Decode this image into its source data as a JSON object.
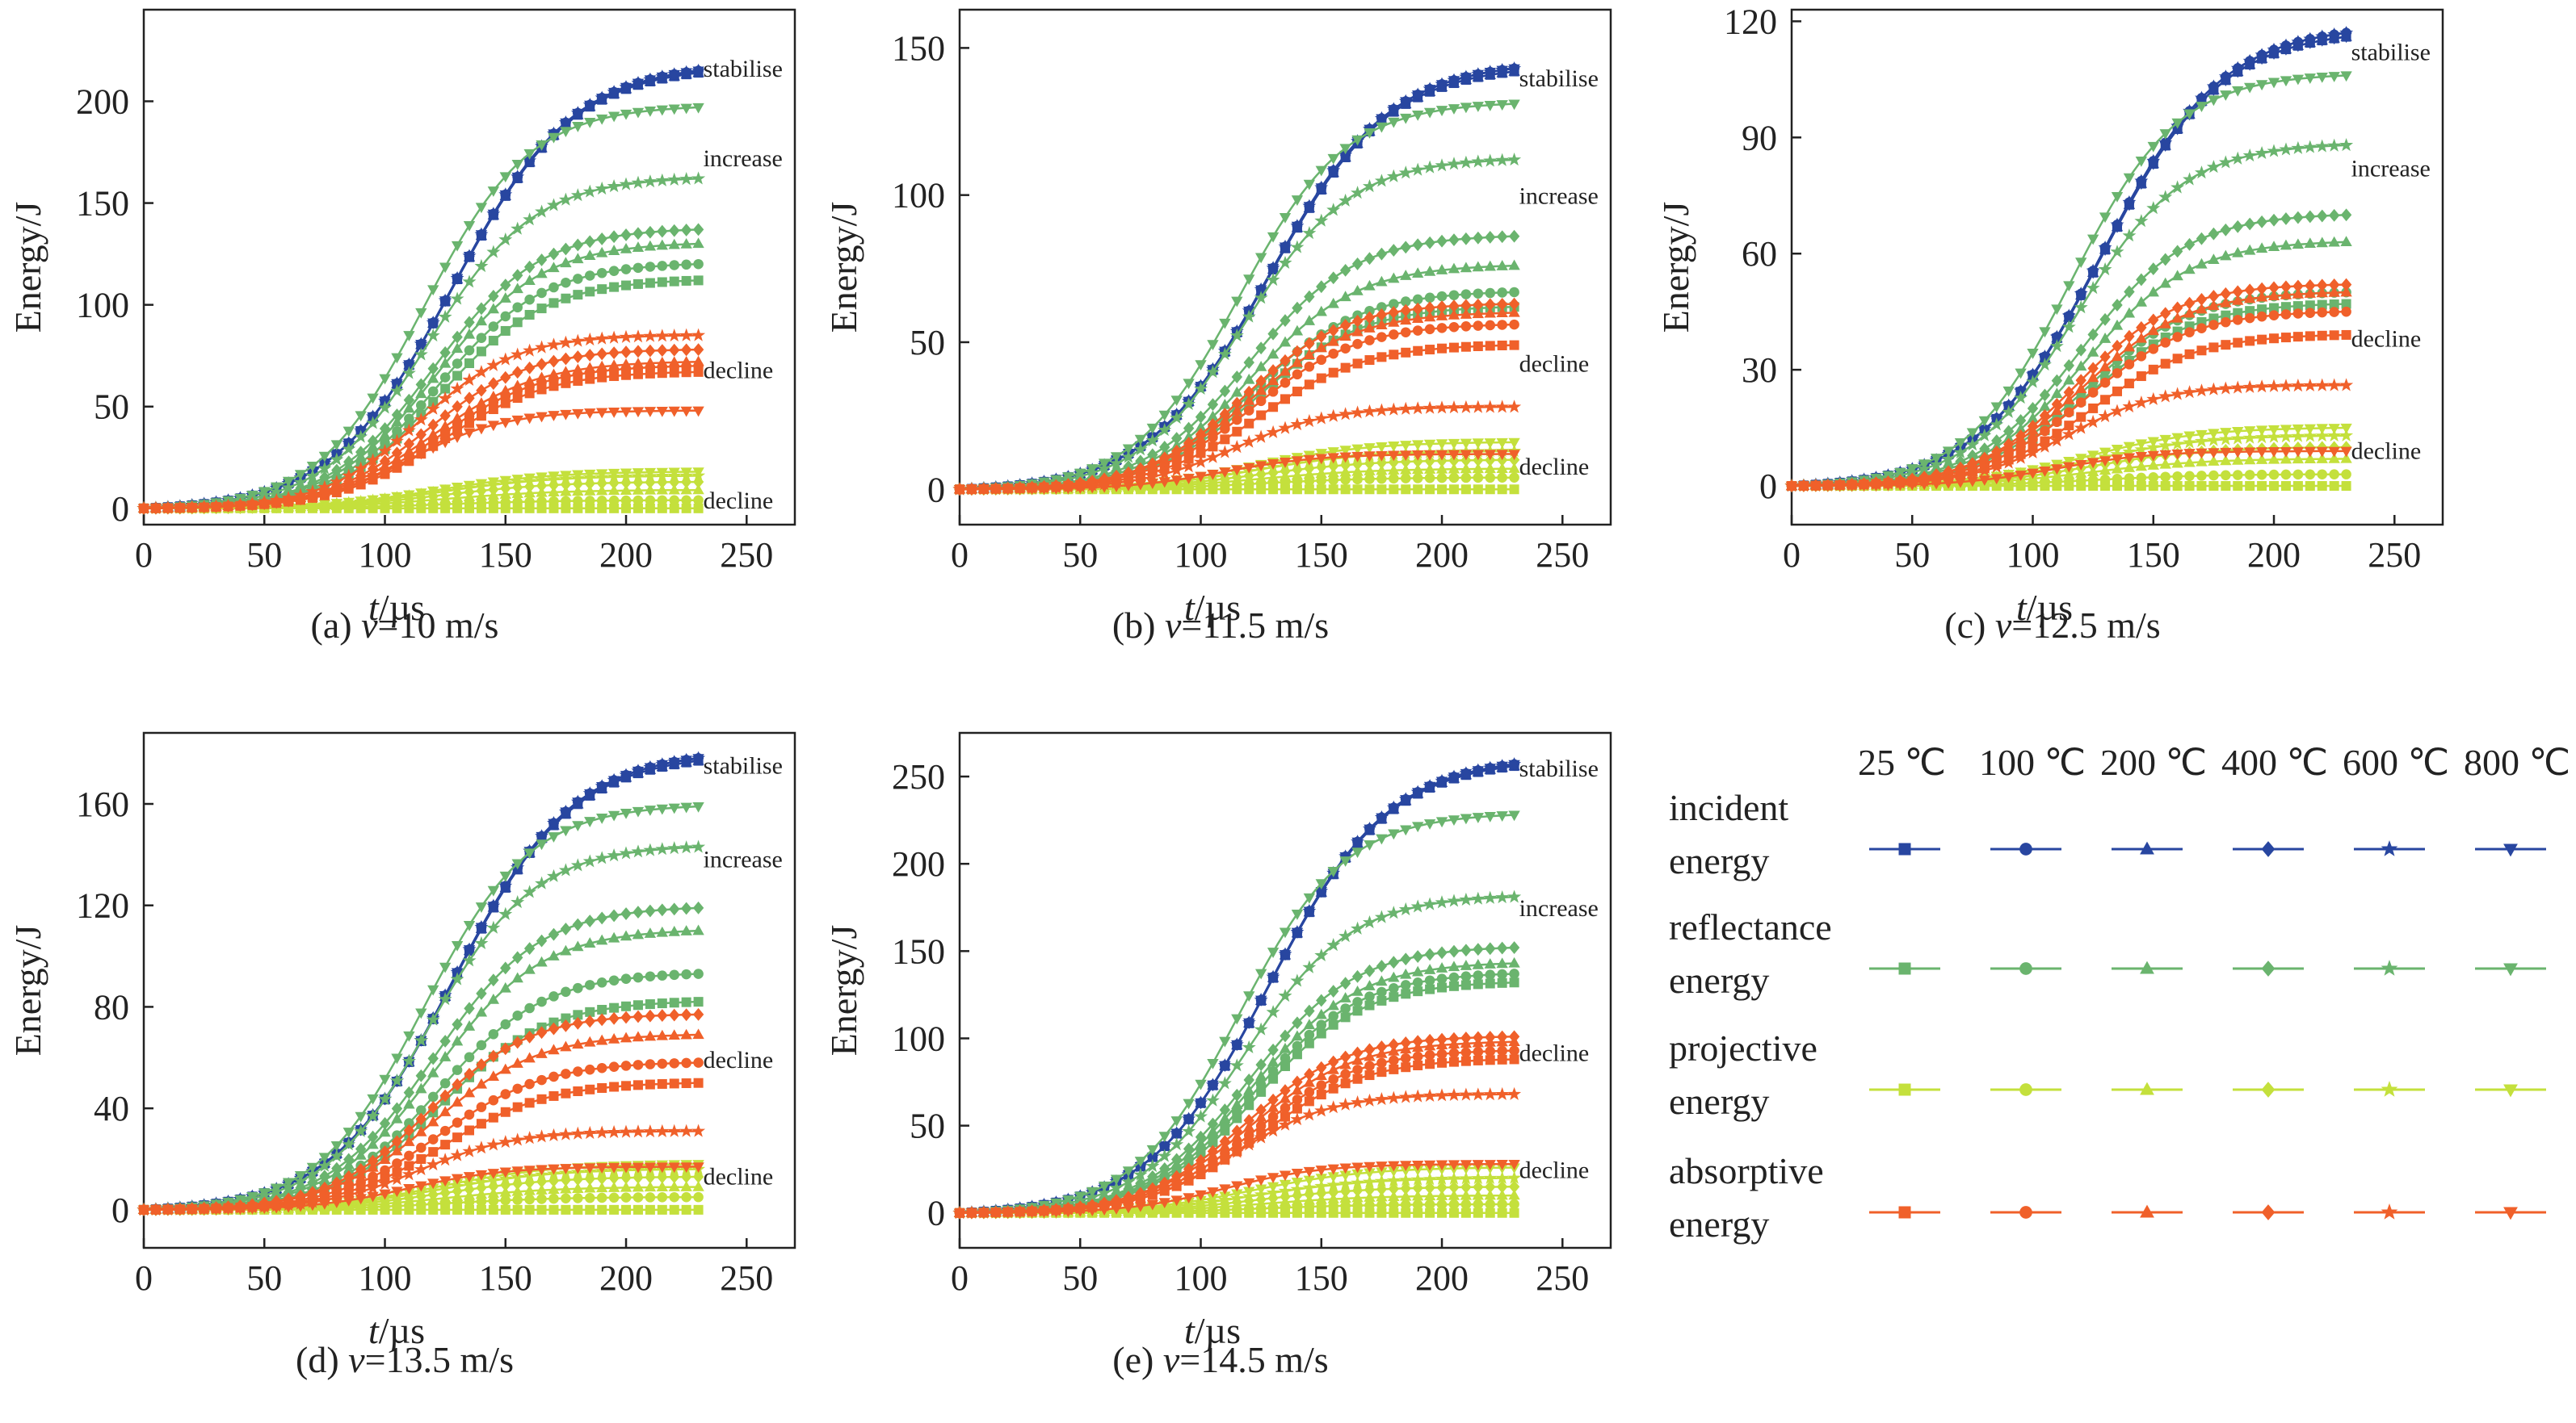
{
  "figure": {
    "panels": [
      "a",
      "b",
      "c",
      "d",
      "e"
    ]
  },
  "legend": {
    "temperatures": [
      "25 ℃",
      "100 ℃",
      "200 ℃",
      "400 ℃",
      "600 ℃",
      "800 ℃"
    ],
    "rows": [
      {
        "label_lines": [
          "incident",
          "energy"
        ],
        "color": "#2846a0"
      },
      {
        "label_lines": [
          "reflectance",
          "energy"
        ],
        "color": "#6ab46e"
      },
      {
        "label_lines": [
          "projective",
          "energy"
        ],
        "color": "#c4e03c"
      },
      {
        "label_lines": [
          "absorptive",
          "energy"
        ],
        "color": "#f0602a"
      }
    ],
    "markers": [
      "square",
      "circle",
      "triangle-up",
      "diamond",
      "star",
      "triangle-down"
    ]
  },
  "chart_data": [
    {
      "id": "a",
      "type": "line",
      "caption_prefix": "(a) ",
      "caption_var": "v",
      "caption_suffix": "=10 m/s",
      "xlabel_italic": "t",
      "xlabel_rest": "/µs",
      "ylabel": "Energy/J",
      "xlim": [
        0,
        270
      ],
      "ylim": [
        -8,
        245
      ],
      "xticks": [
        0,
        50,
        100,
        150,
        200,
        250
      ],
      "yticks": [
        0,
        50,
        100,
        150,
        200
      ],
      "series_end_x": 230,
      "series_finals": {
        "incident": [
          214,
          215,
          214,
          215,
          215,
          215
        ],
        "reflectance": [
          112,
          120,
          130,
          137,
          162,
          197
        ],
        "projective": [
          0,
          4,
          9,
          13,
          16,
          18
        ],
        "absorptive": [
          67,
          70,
          72,
          78,
          85,
          48
        ]
      },
      "annotations": [
        {
          "text": "stabilise",
          "x": 232,
          "y": 212
        },
        {
          "text": "increase",
          "x": 232,
          "y": 168
        },
        {
          "text": "decline",
          "x": 232,
          "y": 64
        },
        {
          "text": "decline",
          "x": 232,
          "y": 0
        }
      ]
    },
    {
      "id": "b",
      "type": "line",
      "caption_prefix": "(b) ",
      "caption_var": "v",
      "caption_suffix": "=11.5 m/s",
      "xlabel_italic": "t",
      "xlabel_rest": "/µs",
      "ylabel": "Energy/J",
      "xlim": [
        0,
        270
      ],
      "ylim": [
        -12,
        163
      ],
      "xticks": [
        0,
        50,
        100,
        150,
        200,
        250
      ],
      "yticks": [
        0,
        50,
        100,
        150
      ],
      "series_end_x": 230,
      "series_finals": {
        "incident": [
          142,
          143,
          142,
          143,
          143,
          143
        ],
        "reflectance": [
          62,
          67,
          76,
          86,
          112,
          131
        ],
        "projective": [
          0,
          4,
          7,
          10,
          13,
          16
        ],
        "absorptive": [
          49,
          56,
          60,
          63,
          28,
          12
        ]
      },
      "annotations": [
        {
          "text": "stabilise",
          "x": 232,
          "y": 137
        },
        {
          "text": "increase",
          "x": 232,
          "y": 97
        },
        {
          "text": "decline",
          "x": 232,
          "y": 40
        },
        {
          "text": "decline",
          "x": 232,
          "y": 5
        }
      ]
    },
    {
      "id": "c",
      "type": "line",
      "caption_prefix": "(c) ",
      "caption_var": "v",
      "caption_suffix": "=12.5 m/s",
      "xlabel_italic": "t",
      "xlabel_rest": "/µs",
      "ylabel": "Energy/J",
      "xlim": [
        0,
        270
      ],
      "ylim": [
        -10,
        123
      ],
      "xticks": [
        0,
        50,
        100,
        150,
        200,
        250
      ],
      "yticks": [
        0,
        30,
        60,
        90,
        120
      ],
      "series_end_x": 230,
      "series_finals": {
        "incident": [
          116,
          117,
          116,
          117,
          117,
          116
        ],
        "reflectance": [
          47,
          50,
          63,
          70,
          88,
          106
        ],
        "projective": [
          0,
          3,
          7,
          10,
          13,
          15
        ],
        "absorptive": [
          39,
          45,
          50,
          52,
          26,
          9
        ]
      },
      "annotations": [
        {
          "text": "stabilise",
          "x": 232,
          "y": 110
        },
        {
          "text": "increase",
          "x": 232,
          "y": 80
        },
        {
          "text": "decline",
          "x": 232,
          "y": 36
        },
        {
          "text": "decline",
          "x": 232,
          "y": 7
        }
      ]
    },
    {
      "id": "d",
      "type": "line",
      "caption_prefix": "(d) ",
      "caption_var": "v",
      "caption_suffix": "=13.5 m/s",
      "xlabel_italic": "t",
      "xlabel_rest": "/µs",
      "ylabel": "Energy/J",
      "xlim": [
        0,
        270
      ],
      "ylim": [
        -15,
        188
      ],
      "xticks": [
        0,
        50,
        100,
        150,
        200,
        250
      ],
      "yticks": [
        0,
        40,
        80,
        120,
        160
      ],
      "series_end_x": 230,
      "series_finals": {
        "incident": [
          177,
          178,
          177,
          178,
          178,
          178
        ],
        "reflectance": [
          82,
          93,
          110,
          119,
          143,
          159
        ],
        "projective": [
          0,
          5,
          9,
          13,
          16,
          18
        ],
        "absorptive": [
          50,
          58,
          69,
          77,
          31,
          17
        ]
      },
      "annotations": [
        {
          "text": "stabilise",
          "x": 232,
          "y": 172
        },
        {
          "text": "increase",
          "x": 232,
          "y": 135
        },
        {
          "text": "decline",
          "x": 232,
          "y": 56
        },
        {
          "text": "decline",
          "x": 232,
          "y": 10
        }
      ]
    },
    {
      "id": "e",
      "type": "line",
      "caption_prefix": "(e) ",
      "caption_var": "v",
      "caption_suffix": "=14.5 m/s",
      "xlabel_italic": "t",
      "xlabel_rest": "/µs",
      "ylabel": "Energy/J",
      "xlim": [
        0,
        270
      ],
      "ylim": [
        -20,
        275
      ],
      "xticks": [
        0,
        50,
        100,
        150,
        200,
        250
      ],
      "yticks": [
        0,
        50,
        100,
        150,
        200,
        250
      ],
      "series_end_x": 230,
      "series_finals": {
        "incident": [
          256,
          257,
          256,
          257,
          257,
          257
        ],
        "reflectance": [
          132,
          137,
          143,
          152,
          181,
          228
        ],
        "projective": [
          0,
          5,
          10,
          15,
          20,
          26
        ],
        "absorptive": [
          88,
          93,
          98,
          101,
          68,
          28
        ]
      },
      "annotations": [
        {
          "text": "stabilise",
          "x": 232,
          "y": 250
        },
        {
          "text": "increase",
          "x": 232,
          "y": 170
        },
        {
          "text": "decline",
          "x": 232,
          "y": 87
        },
        {
          "text": "decline",
          "x": 232,
          "y": 20
        }
      ]
    }
  ]
}
